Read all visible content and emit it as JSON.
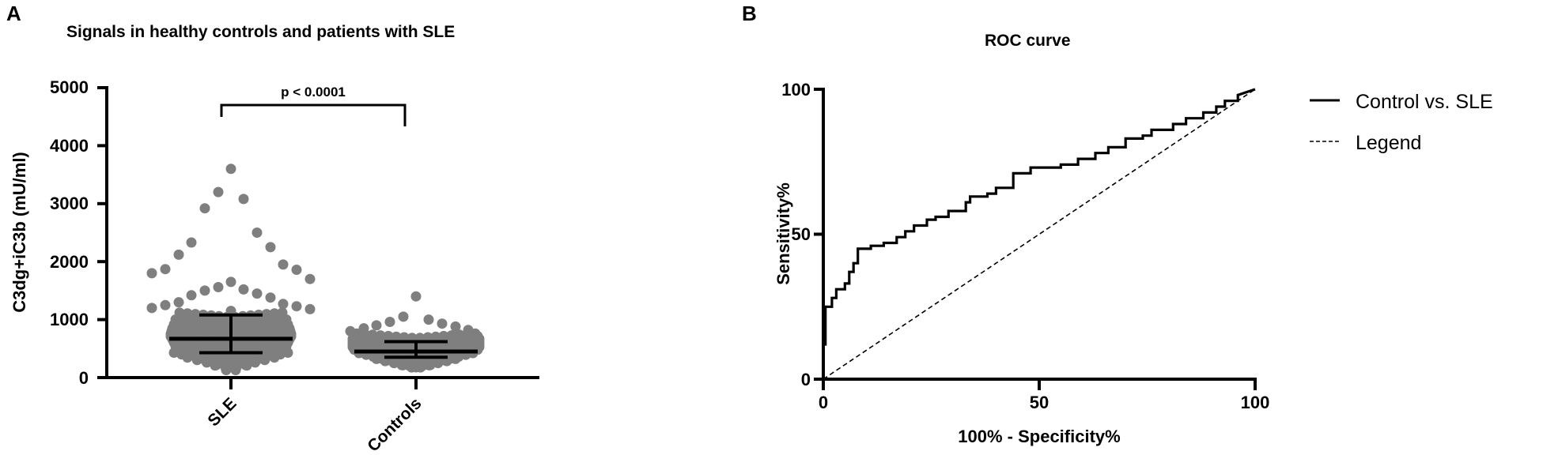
{
  "panels": [
    {
      "label": "A"
    },
    {
      "label": "B"
    }
  ],
  "chart_data": [
    {
      "type": "scatter",
      "subtype": "dot-plot-with-median-iqr",
      "title": "Signals in healthy controls and patients with SLE",
      "xlabel": "",
      "ylabel": "C3dg+iC3b (mU/ml)",
      "ylim": [
        0,
        5000
      ],
      "yticks": [
        0,
        1000,
        2000,
        3000,
        4000,
        5000
      ],
      "yticklabels": [
        "0",
        "1000",
        "2000",
        "3000",
        "4000",
        "5000"
      ],
      "categories": [
        "SLE",
        "Controls"
      ],
      "annotation": "p < 0.0001",
      "grid": false,
      "point_color": "#7f7f7f",
      "series": [
        {
          "name": "SLE",
          "median": 670,
          "q1": 430,
          "q3": 1080,
          "outliers_high": [
            3600,
            3200,
            3080,
            2920,
            2500,
            2330,
            2250,
            2120,
            1950,
            1870,
            1860,
            1800,
            1700,
            1650,
            1560,
            1520,
            1500,
            1450,
            1420,
            1380,
            1300,
            1270,
            1250,
            1230,
            1200,
            1180,
            1150
          ],
          "range": [
            130,
            3600
          ]
        },
        {
          "name": "Controls",
          "median": 450,
          "q1": 350,
          "q3": 620,
          "outliers_high": [
            1400,
            1050,
            1000,
            960,
            930,
            900,
            880,
            850,
            820,
            800
          ],
          "range": [
            170,
            1400
          ]
        }
      ]
    },
    {
      "type": "line",
      "title": "ROC curve",
      "xlabel": "100% - Specificity%",
      "ylabel": "Sensitivity%",
      "xlim": [
        0,
        100
      ],
      "ylim": [
        0,
        100
      ],
      "xticks": [
        0,
        50,
        100
      ],
      "yticks": [
        0,
        50,
        100
      ],
      "grid": false,
      "legend_position": "right",
      "series": [
        {
          "name": "Control vs. SLE",
          "style": "solid",
          "x": [
            0,
            0,
            0.5,
            0.5,
            2,
            2,
            3,
            3,
            5,
            5,
            6,
            6,
            7,
            7,
            8,
            8,
            11,
            11,
            14,
            14,
            17,
            17,
            19,
            19,
            21,
            21,
            24,
            24,
            26,
            26,
            29,
            29,
            33,
            33,
            34,
            34,
            38,
            38,
            40,
            40,
            44,
            44,
            48,
            48,
            55,
            55,
            59,
            59,
            63,
            63,
            66,
            66,
            70,
            70,
            74,
            74,
            76,
            76,
            81,
            81,
            84,
            84,
            88,
            88,
            91,
            91,
            93,
            93,
            96,
            96,
            100
          ],
          "y": [
            0,
            12,
            12,
            25,
            25,
            28,
            28,
            31,
            31,
            33,
            33,
            37,
            37,
            40,
            40,
            45,
            45,
            46,
            46,
            47,
            47,
            49,
            49,
            51,
            51,
            53,
            53,
            55,
            55,
            56,
            56,
            58,
            58,
            61,
            61,
            63,
            63,
            64,
            64,
            66,
            66,
            71,
            71,
            73,
            73,
            74,
            74,
            76,
            76,
            78,
            78,
            80,
            80,
            83,
            83,
            84,
            84,
            86,
            86,
            88,
            88,
            90,
            90,
            92,
            92,
            94,
            94,
            96,
            96,
            98,
            100
          ]
        },
        {
          "name": "Legend",
          "style": "dashed",
          "x": [
            0,
            100
          ],
          "y": [
            0,
            100
          ]
        }
      ]
    }
  ],
  "panelA": {
    "title": "Signals in healthy controls and patients with SLE",
    "ylabel": "C3dg+iC3b (mU/ml)",
    "yticklabels": [
      "0",
      "1000",
      "2000",
      "3000",
      "4000",
      "5000"
    ],
    "xticklabels": [
      "SLE",
      "Controls"
    ],
    "pvalue": "p < 0.0001"
  },
  "panelB": {
    "title": "ROC curve",
    "xlabel": "100% - Specificity%",
    "ylabel": "Sensitivity%",
    "xticklabels": [
      "0",
      "50",
      "100"
    ],
    "yticklabels": [
      "0",
      "50",
      "100"
    ],
    "legend": [
      {
        "label": "Control vs. SLE",
        "style": "solid"
      },
      {
        "label": "Legend",
        "style": "dashed"
      }
    ]
  }
}
